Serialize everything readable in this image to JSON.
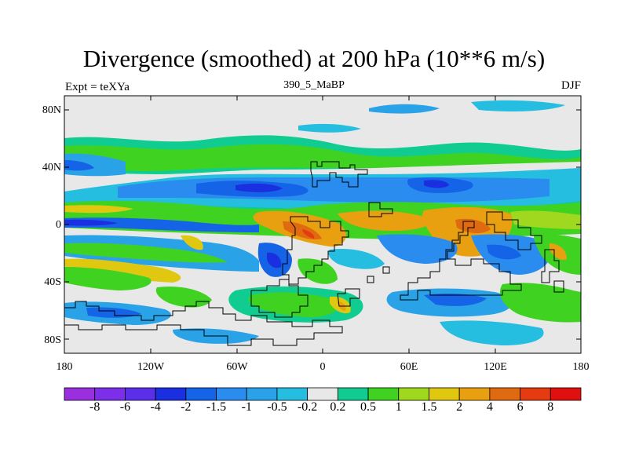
{
  "title": "Divergence (smoothed) at 200 hPa (10**6 m/s)",
  "left_label": "Expt = teXYa",
  "center_label": "390_5_MaBP",
  "right_label": "DJF",
  "lat_ticks": [
    "80N",
    "40N",
    "0",
    "40S",
    "80S"
  ],
  "lon_ticks": [
    "180",
    "120W",
    "60W",
    "0",
    "60E",
    "120E",
    "180"
  ],
  "colorbar": {
    "labels": [
      "-8",
      "-6",
      "-4",
      "-2",
      "-1.5",
      "-1",
      "-0.5",
      "-0.2",
      "0.2",
      "0.5",
      "1",
      "1.5",
      "2",
      "4",
      "6",
      "8"
    ],
    "colors": [
      "#9a2fe0",
      "#7d2ee8",
      "#5b2fe8",
      "#1a2fe0",
      "#1563e6",
      "#2a8cee",
      "#2aa2e8",
      "#25bde0",
      "#e8e8e8",
      "#10cc90",
      "#40d220",
      "#a0d820",
      "#e0c810",
      "#e8a010",
      "#e06a10",
      "#e63a10",
      "#e01010"
    ]
  },
  "chart_data": {
    "type": "heatmap",
    "title": "Divergence (smoothed) at 200 hPa (10**6 m/s)",
    "subtitle": "390_5_MaBP",
    "experiment": "Expt = teXYa",
    "season": "DJF",
    "x_ticks": [
      "180",
      "120W",
      "60W",
      "0",
      "60E",
      "120E",
      "180"
    ],
    "y_ticks": [
      "80N",
      "40N",
      "0",
      "40S",
      "80S"
    ],
    "xlim": [
      -180,
      180
    ],
    "ylim": [
      -90,
      90
    ],
    "color_levels": [
      -8,
      -6,
      -4,
      -2,
      -1.5,
      -1,
      -0.5,
      -0.2,
      0.2,
      0.5,
      1,
      1.5,
      2,
      4,
      6,
      8
    ]
  }
}
